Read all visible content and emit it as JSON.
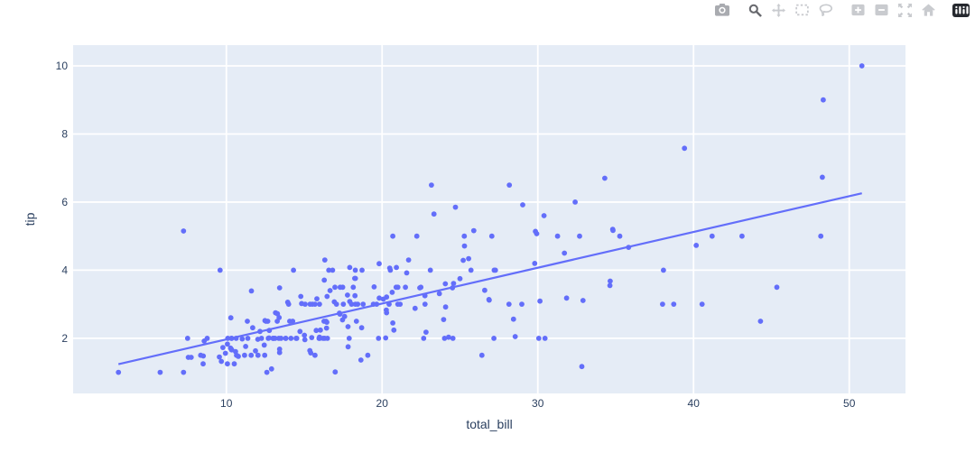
{
  "modebar": {
    "buttons": [
      {
        "name": "download-plot",
        "icon": "camera-icon",
        "group": 1,
        "shade": "mid"
      },
      {
        "name": "zoom",
        "icon": "magnifier-icon",
        "group": 2,
        "active": true
      },
      {
        "name": "pan",
        "icon": "pan-arrows-icon",
        "group": 2
      },
      {
        "name": "box-select",
        "icon": "dashed-box-icon",
        "group": 2
      },
      {
        "name": "lasso-select",
        "icon": "lasso-icon",
        "group": 2
      },
      {
        "name": "zoom-in",
        "icon": "plus-square-icon",
        "group": 3
      },
      {
        "name": "zoom-out",
        "icon": "minus-square-icon",
        "group": 3
      },
      {
        "name": "autoscale",
        "icon": "autoscale-arrows-icon",
        "group": 3
      },
      {
        "name": "reset-axes",
        "icon": "home-icon",
        "group": 3
      },
      {
        "name": "plotly-logo",
        "icon": "plotly-logo-icon",
        "group": 4,
        "logo": true
      }
    ]
  },
  "chart_data": {
    "type": "scatter",
    "title": "",
    "xlabel": "total_bill",
    "ylabel": "tip",
    "xticks": [
      10,
      20,
      30,
      40,
      50
    ],
    "yticks": [
      2,
      4,
      6,
      8,
      10
    ],
    "xlim": [
      0.16,
      53.61
    ],
    "ylim": [
      0.38,
      10.61
    ],
    "grid": true,
    "legend_position": "none",
    "marker_color": "#636efa",
    "trendline_color": "#636efa",
    "plot_bg": "#e5ecf6",
    "grid_color": "#ffffff",
    "tick_color": "#2a3f5f",
    "trendline": {
      "type": "ols",
      "slope": 0.105,
      "intercept": 0.92,
      "x0": 3.07,
      "y0": 1.24,
      "x1": 50.81,
      "y1": 6.26
    },
    "points": [
      [
        16.99,
        1.01
      ],
      [
        10.34,
        1.66
      ],
      [
        21.01,
        3.5
      ],
      [
        23.68,
        3.31
      ],
      [
        24.59,
        3.61
      ],
      [
        25.29,
        4.71
      ],
      [
        8.77,
        2.0
      ],
      [
        26.88,
        3.12
      ],
      [
        15.04,
        1.96
      ],
      [
        14.78,
        3.23
      ],
      [
        10.27,
        1.71
      ],
      [
        35.26,
        5.0
      ],
      [
        15.42,
        1.57
      ],
      [
        18.43,
        3.0
      ],
      [
        14.83,
        3.02
      ],
      [
        21.58,
        3.92
      ],
      [
        10.33,
        1.67
      ],
      [
        16.29,
        3.71
      ],
      [
        16.97,
        3.5
      ],
      [
        20.65,
        3.35
      ],
      [
        17.92,
        4.08
      ],
      [
        20.29,
        2.75
      ],
      [
        15.77,
        2.23
      ],
      [
        39.42,
        7.58
      ],
      [
        19.82,
        3.18
      ],
      [
        17.81,
        2.34
      ],
      [
        13.37,
        2.0
      ],
      [
        12.69,
        2.0
      ],
      [
        21.7,
        4.3
      ],
      [
        19.65,
        3.0
      ],
      [
        9.55,
        1.45
      ],
      [
        18.35,
        2.5
      ],
      [
        15.06,
        3.0
      ],
      [
        20.69,
        2.45
      ],
      [
        17.78,
        3.27
      ],
      [
        24.06,
        3.6
      ],
      [
        16.31,
        2.0
      ],
      [
        16.93,
        3.07
      ],
      [
        18.69,
        2.31
      ],
      [
        31.27,
        5.0
      ],
      [
        16.04,
        2.24
      ],
      [
        17.46,
        2.54
      ],
      [
        13.94,
        3.06
      ],
      [
        9.68,
        1.32
      ],
      [
        30.4,
        5.6
      ],
      [
        18.29,
        3.0
      ],
      [
        22.23,
        5.0
      ],
      [
        32.4,
        6.0
      ],
      [
        28.55,
        2.05
      ],
      [
        18.04,
        3.0
      ],
      [
        12.54,
        2.5
      ],
      [
        10.29,
        2.6
      ],
      [
        34.81,
        5.2
      ],
      [
        9.94,
        1.56
      ],
      [
        25.56,
        4.34
      ],
      [
        19.49,
        3.51
      ],
      [
        38.01,
        3.0
      ],
      [
        26.41,
        1.5
      ],
      [
        11.24,
        1.76
      ],
      [
        48.27,
        6.73
      ],
      [
        20.29,
        3.21
      ],
      [
        13.81,
        2.0
      ],
      [
        11.02,
        1.98
      ],
      [
        18.29,
        3.76
      ],
      [
        17.59,
        2.64
      ],
      [
        20.08,
        3.15
      ],
      [
        16.45,
        2.47
      ],
      [
        3.07,
        1.0
      ],
      [
        20.23,
        2.01
      ],
      [
        15.01,
        2.09
      ],
      [
        12.02,
        1.97
      ],
      [
        17.07,
        3.0
      ],
      [
        26.86,
        3.14
      ],
      [
        25.28,
        5.0
      ],
      [
        14.73,
        2.2
      ],
      [
        10.51,
        1.25
      ],
      [
        17.92,
        3.08
      ],
      [
        27.2,
        4.0
      ],
      [
        22.76,
        3.0
      ],
      [
        17.29,
        2.71
      ],
      [
        19.44,
        3.0
      ],
      [
        16.66,
        3.4
      ],
      [
        10.07,
        1.83
      ],
      [
        32.68,
        5.0
      ],
      [
        15.98,
        2.03
      ],
      [
        34.83,
        5.17
      ],
      [
        13.03,
        2.0
      ],
      [
        18.28,
        4.0
      ],
      [
        24.71,
        5.85
      ],
      [
        21.16,
        3.0
      ],
      [
        28.97,
        3.0
      ],
      [
        22.49,
        3.5
      ],
      [
        5.75,
        1.0
      ],
      [
        16.32,
        4.3
      ],
      [
        22.75,
        3.25
      ],
      [
        40.17,
        4.73
      ],
      [
        27.28,
        4.0
      ],
      [
        12.03,
        1.5
      ],
      [
        21.01,
        3.0
      ],
      [
        12.46,
        1.5
      ],
      [
        11.35,
        2.5
      ],
      [
        15.38,
        3.0
      ],
      [
        44.3,
        2.5
      ],
      [
        22.42,
        3.48
      ],
      [
        20.92,
        4.08
      ],
      [
        15.36,
        1.64
      ],
      [
        20.49,
        4.06
      ],
      [
        25.21,
        4.29
      ],
      [
        18.24,
        3.76
      ],
      [
        14.31,
        4.0
      ],
      [
        14.0,
        3.0
      ],
      [
        7.25,
        1.0
      ],
      [
        38.07,
        4.0
      ],
      [
        23.95,
        2.55
      ],
      [
        25.71,
        4.0
      ],
      [
        17.31,
        3.5
      ],
      [
        29.93,
        5.07
      ],
      [
        10.65,
        1.5
      ],
      [
        12.43,
        1.8
      ],
      [
        24.08,
        2.92
      ],
      [
        11.69,
        2.31
      ],
      [
        13.42,
        1.68
      ],
      [
        14.26,
        2.5
      ],
      [
        15.95,
        2.0
      ],
      [
        12.48,
        2.52
      ],
      [
        29.8,
        4.2
      ],
      [
        8.52,
        1.48
      ],
      [
        14.52,
        2.0
      ],
      [
        11.38,
        2.0
      ],
      [
        22.82,
        2.18
      ],
      [
        19.08,
        1.5
      ],
      [
        20.27,
        2.83
      ],
      [
        11.17,
        1.5
      ],
      [
        12.26,
        2.0
      ],
      [
        18.26,
        3.25
      ],
      [
        8.51,
        1.25
      ],
      [
        10.33,
        2.0
      ],
      [
        14.15,
        2.0
      ],
      [
        16.0,
        2.0
      ],
      [
        13.16,
        2.75
      ],
      [
        17.47,
        3.5
      ],
      [
        34.3,
        6.7
      ],
      [
        41.19,
        5.0
      ],
      [
        27.05,
        5.0
      ],
      [
        16.43,
        2.3
      ],
      [
        8.35,
        1.5
      ],
      [
        18.64,
        1.36
      ],
      [
        11.87,
        1.63
      ],
      [
        9.78,
        1.73
      ],
      [
        7.51,
        2.0
      ],
      [
        14.07,
        2.5
      ],
      [
        13.13,
        2.0
      ],
      [
        17.26,
        2.74
      ],
      [
        24.55,
        2.0
      ],
      [
        19.77,
        2.0
      ],
      [
        29.85,
        5.14
      ],
      [
        48.17,
        5.0
      ],
      [
        25.0,
        3.75
      ],
      [
        13.39,
        2.61
      ],
      [
        16.49,
        2.0
      ],
      [
        21.5,
        3.5
      ],
      [
        12.66,
        2.5
      ],
      [
        16.21,
        2.0
      ],
      [
        13.81,
        2.0
      ],
      [
        17.51,
        3.0
      ],
      [
        24.52,
        3.48
      ],
      [
        20.76,
        2.24
      ],
      [
        31.71,
        4.5
      ],
      [
        10.59,
        1.61
      ],
      [
        10.63,
        2.0
      ],
      [
        50.81,
        10.0
      ],
      [
        15.81,
        3.16
      ],
      [
        7.25,
        5.15
      ],
      [
        31.85,
        3.18
      ],
      [
        16.82,
        4.0
      ],
      [
        32.9,
        3.11
      ],
      [
        17.89,
        2.0
      ],
      [
        14.48,
        2.0
      ],
      [
        9.6,
        4.0
      ],
      [
        34.63,
        3.55
      ],
      [
        34.65,
        3.68
      ],
      [
        23.33,
        5.65
      ],
      [
        45.35,
        3.5
      ],
      [
        23.17,
        6.5
      ],
      [
        40.55,
        3.0
      ],
      [
        20.69,
        5.0
      ],
      [
        20.9,
        3.5
      ],
      [
        30.46,
        2.0
      ],
      [
        18.15,
        3.5
      ],
      [
        23.1,
        4.0
      ],
      [
        15.69,
        1.5
      ],
      [
        19.81,
        4.19
      ],
      [
        28.44,
        2.56
      ],
      [
        15.48,
        2.02
      ],
      [
        16.58,
        4.0
      ],
      [
        7.56,
        1.44
      ],
      [
        10.34,
        2.0
      ],
      [
        43.11,
        5.0
      ],
      [
        13.0,
        2.0
      ],
      [
        13.51,
        2.0
      ],
      [
        18.71,
        4.0
      ],
      [
        12.74,
        2.01
      ],
      [
        13.0,
        2.0
      ],
      [
        16.4,
        2.5
      ],
      [
        20.53,
        4.0
      ],
      [
        16.47,
        3.23
      ],
      [
        26.59,
        3.41
      ],
      [
        38.73,
        3.0
      ],
      [
        24.27,
        2.03
      ],
      [
        12.76,
        2.23
      ],
      [
        30.06,
        2.0
      ],
      [
        25.89,
        5.16
      ],
      [
        48.33,
        9.0
      ],
      [
        13.27,
        2.5
      ],
      [
        28.17,
        6.5
      ],
      [
        12.9,
        1.1
      ],
      [
        28.15,
        3.0
      ],
      [
        11.59,
        1.5
      ],
      [
        7.74,
        1.44
      ],
      [
        30.14,
        3.09
      ],
      [
        12.16,
        2.2
      ],
      [
        13.42,
        3.48
      ],
      [
        8.58,
        1.92
      ],
      [
        15.98,
        3.0
      ],
      [
        13.42,
        1.58
      ],
      [
        16.27,
        2.5
      ],
      [
        10.09,
        2.0
      ],
      [
        20.45,
        3.0
      ],
      [
        13.28,
        2.72
      ],
      [
        22.12,
        2.88
      ],
      [
        24.01,
        2.0
      ],
      [
        15.69,
        3.0
      ],
      [
        11.61,
        3.39
      ],
      [
        10.77,
        1.47
      ],
      [
        15.53,
        3.0
      ],
      [
        10.07,
        1.25
      ],
      [
        12.6,
        1.0
      ],
      [
        32.83,
        1.17
      ],
      [
        35.83,
        4.67
      ],
      [
        29.03,
        5.92
      ],
      [
        27.18,
        2.0
      ],
      [
        22.67,
        2.0
      ],
      [
        17.82,
        1.75
      ],
      [
        18.78,
        3.0
      ]
    ]
  }
}
